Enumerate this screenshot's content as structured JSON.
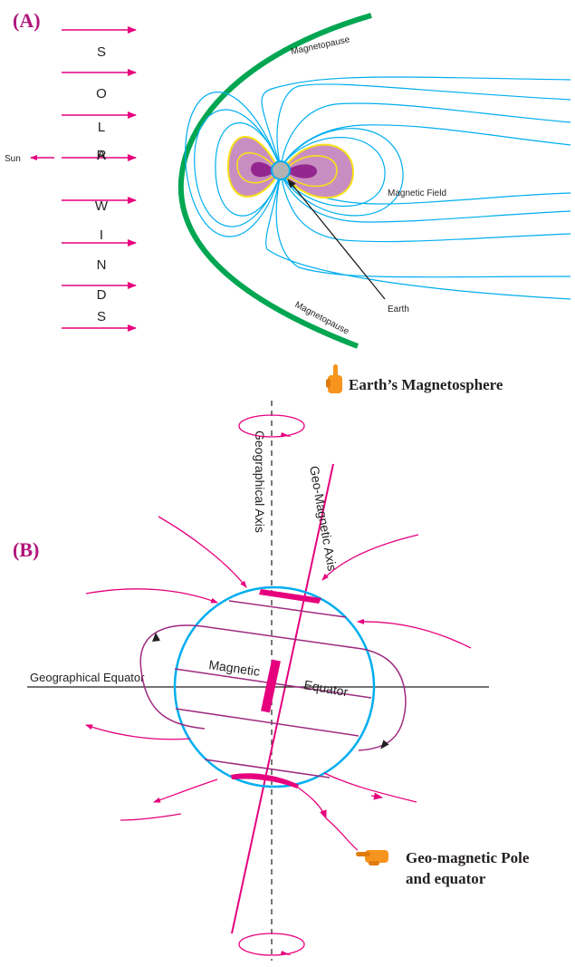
{
  "panel_a": {
    "label": "(A)",
    "solar_wind_letters": [
      "S",
      "O",
      "L",
      "A",
      "R",
      "W",
      "I",
      "N",
      "D",
      "S"
    ],
    "sun_label": "Sun",
    "magnetopause_top": "Magnetopause",
    "magnetopause_bottom": "Magnetopause",
    "magnetic_field_label": "Magnetic Field",
    "earth_label": "Earth",
    "caption": "Earth’s Magnetosphere"
  },
  "panel_b": {
    "label": "(B)",
    "geographical_axis": "Geographical Axis",
    "geomagnetic_axis": "Geo-Magnetic Axis",
    "geographical_equator": "Geographical Equator",
    "magnetic_word": "Magnetic",
    "equator_word": "Equator",
    "caption_line1": "Geo-magnetic Pole",
    "caption_line2": "and equator"
  },
  "colors": {
    "arrow": "#e6007e",
    "magnetopause": "#00a651",
    "field_lines": "#00aeef",
    "belt_fill": "#c98ec1",
    "belt_outline": "#f7e11a",
    "inner_belt": "#93278f",
    "loop": "#9e2a7f"
  }
}
